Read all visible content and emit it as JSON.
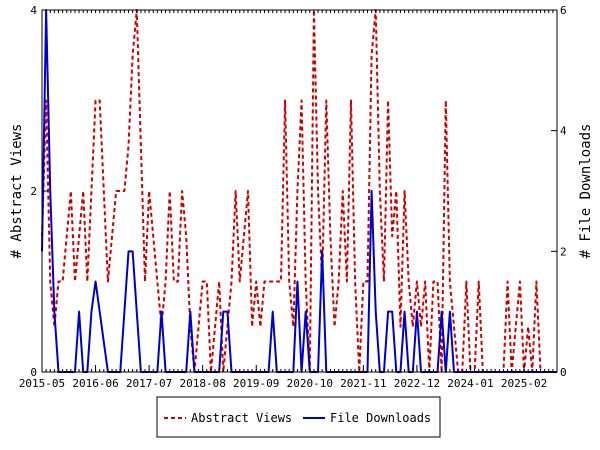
{
  "chart_data": {
    "type": "line",
    "title": "",
    "xlabel": "",
    "ylabel_left": "# Abstract Views",
    "ylabel_right": "# File Downloads",
    "x_range": [
      "2015-05",
      "2025-10"
    ],
    "ylim_left": [
      0,
      4
    ],
    "ylim_right": [
      0,
      6
    ],
    "x_ticks": [
      "2015-05",
      "2016-06",
      "2017-07",
      "2018-08",
      "2019-09",
      "2020-10",
      "2021-11",
      "2022-12",
      "2024-01",
      "2025-02"
    ],
    "y_ticks_left": [
      0,
      2,
      4
    ],
    "y_ticks_right": [
      0,
      2,
      4,
      6
    ],
    "grid": false,
    "legend_position": "bottom",
    "series": [
      {
        "name": "Abstract Views",
        "axis": "left",
        "color": "#cc0000",
        "style": "dashed",
        "points": [
          [
            "2015-05",
            1.5
          ],
          [
            "2015-06",
            3.0
          ],
          [
            "2015-07",
            1.0
          ],
          [
            "2015-08",
            0.5
          ],
          [
            "2015-09",
            1.0
          ],
          [
            "2015-10",
            1.0
          ],
          [
            "2015-11",
            1.5
          ],
          [
            "2015-12",
            2.0
          ],
          [
            "2016-01",
            1.0
          ],
          [
            "2016-02",
            1.5
          ],
          [
            "2016-03",
            2.0
          ],
          [
            "2016-04",
            1.0
          ],
          [
            "2016-05",
            2.0
          ],
          [
            "2016-06",
            3.0
          ],
          [
            "2016-07",
            3.0
          ],
          [
            "2016-08",
            2.0
          ],
          [
            "2016-09",
            1.0
          ],
          [
            "2016-10",
            1.5
          ],
          [
            "2016-11",
            2.0
          ],
          [
            "2016-12",
            2.0
          ],
          [
            "2017-01",
            2.0
          ],
          [
            "2017-02",
            2.5
          ],
          [
            "2017-03",
            3.5
          ],
          [
            "2017-04",
            4.0
          ],
          [
            "2017-05",
            2.5
          ],
          [
            "2017-06",
            1.0
          ],
          [
            "2017-07",
            2.0
          ],
          [
            "2017-08",
            1.5
          ],
          [
            "2017-09",
            1.0
          ],
          [
            "2017-10",
            0.5
          ],
          [
            "2017-11",
            1.0
          ],
          [
            "2017-12",
            2.0
          ],
          [
            "2018-01",
            1.0
          ],
          [
            "2018-02",
            1.0
          ],
          [
            "2018-03",
            2.0
          ],
          [
            "2018-04",
            1.5
          ],
          [
            "2018-05",
            0.5
          ],
          [
            "2018-06",
            0.0
          ],
          [
            "2018-07",
            0.5
          ],
          [
            "2018-08",
            1.0
          ],
          [
            "2018-09",
            1.0
          ],
          [
            "2018-10",
            0.0
          ],
          [
            "2018-11",
            0.5
          ],
          [
            "2018-12",
            1.0
          ],
          [
            "2019-01",
            0.0
          ],
          [
            "2019-02",
            0.5
          ],
          [
            "2019-03",
            1.0
          ],
          [
            "2019-04",
            2.0
          ],
          [
            "2019-05",
            1.0
          ],
          [
            "2019-06",
            1.5
          ],
          [
            "2019-07",
            2.0
          ],
          [
            "2019-08",
            0.5
          ],
          [
            "2019-09",
            1.0
          ],
          [
            "2019-10",
            0.5
          ],
          [
            "2019-11",
            1.0
          ],
          [
            "2019-12",
            1.0
          ],
          [
            "2020-01",
            1.0
          ],
          [
            "2020-02",
            1.0
          ],
          [
            "2020-03",
            1.0
          ],
          [
            "2020-04",
            3.0
          ],
          [
            "2020-05",
            1.0
          ],
          [
            "2020-06",
            0.5
          ],
          [
            "2020-07",
            2.0
          ],
          [
            "2020-08",
            3.0
          ],
          [
            "2020-09",
            1.0
          ],
          [
            "2020-10",
            0.0
          ],
          [
            "2020-11",
            4.0
          ],
          [
            "2020-12",
            2.0
          ],
          [
            "2021-01",
            1.0
          ],
          [
            "2021-02",
            3.0
          ],
          [
            "2021-03",
            1.5
          ],
          [
            "2021-04",
            0.5
          ],
          [
            "2021-05",
            1.0
          ],
          [
            "2021-06",
            2.0
          ],
          [
            "2021-07",
            1.0
          ],
          [
            "2021-08",
            3.0
          ],
          [
            "2021-09",
            1.0
          ],
          [
            "2021-10",
            0.0
          ],
          [
            "2021-11",
            1.0
          ],
          [
            "2021-12",
            1.0
          ],
          [
            "2022-01",
            3.5
          ],
          [
            "2022-02",
            4.0
          ],
          [
            "2022-03",
            2.0
          ],
          [
            "2022-04",
            1.0
          ],
          [
            "2022-05",
            3.0
          ],
          [
            "2022-06",
            1.5
          ],
          [
            "2022-07",
            2.0
          ],
          [
            "2022-08",
            0.5
          ],
          [
            "2022-09",
            2.0
          ],
          [
            "2022-10",
            1.0
          ],
          [
            "2022-11",
            0.5
          ],
          [
            "2022-12",
            1.0
          ],
          [
            "2023-01",
            0.5
          ],
          [
            "2023-02",
            1.0
          ],
          [
            "2023-03",
            0.0
          ],
          [
            "2023-04",
            1.0
          ],
          [
            "2023-05",
            1.0
          ],
          [
            "2023-06",
            0.0
          ],
          [
            "2023-07",
            3.0
          ],
          [
            "2023-08",
            1.0
          ],
          [
            "2023-09",
            0.5
          ],
          [
            "2023-10",
            0.0
          ],
          [
            "2023-11",
            0.0
          ],
          [
            "2023-12",
            1.0
          ],
          [
            "2024-01",
            0.0
          ],
          [
            "2024-02",
            0.0
          ],
          [
            "2024-03",
            1.0
          ],
          [
            "2024-04",
            0.0
          ],
          [
            "2024-05",
            0.0
          ],
          [
            "2024-06",
            0.0
          ],
          [
            "2024-07",
            0.0
          ],
          [
            "2024-08",
            0.0
          ],
          [
            "2024-09",
            0.0
          ],
          [
            "2024-10",
            1.0
          ],
          [
            "2024-11",
            0.0
          ],
          [
            "2024-12",
            0.5
          ],
          [
            "2025-01",
            1.0
          ],
          [
            "2025-02",
            0.0
          ],
          [
            "2025-03",
            0.5
          ],
          [
            "2025-04",
            0.0
          ],
          [
            "2025-05",
            1.0
          ],
          [
            "2025-06",
            0.0
          ],
          [
            "2025-07",
            0.0
          ],
          [
            "2025-08",
            0.0
          ],
          [
            "2025-09",
            0.0
          ],
          [
            "2025-10",
            0.0
          ]
        ]
      },
      {
        "name": "File Downloads",
        "axis": "right",
        "color": "#0000cc",
        "style": "solid",
        "points": [
          [
            "2015-05",
            2.0
          ],
          [
            "2015-06",
            6.0
          ],
          [
            "2015-07",
            3.0
          ],
          [
            "2015-08",
            1.0
          ],
          [
            "2015-09",
            0.0
          ],
          [
            "2015-10",
            0.0
          ],
          [
            "2015-11",
            0.0
          ],
          [
            "2015-12",
            0.0
          ],
          [
            "2016-01",
            0.0
          ],
          [
            "2016-02",
            1.0
          ],
          [
            "2016-03",
            0.0
          ],
          [
            "2016-04",
            0.0
          ],
          [
            "2016-05",
            1.0
          ],
          [
            "2016-06",
            1.5
          ],
          [
            "2016-07",
            1.0
          ],
          [
            "2016-08",
            0.5
          ],
          [
            "2016-09",
            0.0
          ],
          [
            "2016-10",
            0.0
          ],
          [
            "2016-11",
            0.0
          ],
          [
            "2016-12",
            0.0
          ],
          [
            "2017-01",
            1.0
          ],
          [
            "2017-02",
            2.0
          ],
          [
            "2017-03",
            2.0
          ],
          [
            "2017-04",
            1.0
          ],
          [
            "2017-05",
            0.0
          ],
          [
            "2017-06",
            0.0
          ],
          [
            "2017-07",
            0.0
          ],
          [
            "2017-08",
            0.0
          ],
          [
            "2017-09",
            0.0
          ],
          [
            "2017-10",
            1.0
          ],
          [
            "2017-11",
            0.0
          ],
          [
            "2017-12",
            0.0
          ],
          [
            "2018-01",
            0.0
          ],
          [
            "2018-02",
            0.0
          ],
          [
            "2018-03",
            0.0
          ],
          [
            "2018-04",
            0.0
          ],
          [
            "2018-05",
            1.0
          ],
          [
            "2018-06",
            0.0
          ],
          [
            "2018-07",
            0.0
          ],
          [
            "2018-08",
            0.0
          ],
          [
            "2018-09",
            0.0
          ],
          [
            "2018-10",
            0.0
          ],
          [
            "2018-11",
            0.0
          ],
          [
            "2018-12",
            0.0
          ],
          [
            "2019-01",
            1.0
          ],
          [
            "2019-02",
            1.0
          ],
          [
            "2019-03",
            0.0
          ],
          [
            "2019-04",
            0.0
          ],
          [
            "2019-05",
            0.0
          ],
          [
            "2019-06",
            0.0
          ],
          [
            "2019-07",
            0.0
          ],
          [
            "2019-08",
            0.0
          ],
          [
            "2019-09",
            0.0
          ],
          [
            "2019-10",
            0.0
          ],
          [
            "2019-11",
            0.0
          ],
          [
            "2019-12",
            0.0
          ],
          [
            "2020-01",
            1.0
          ],
          [
            "2020-02",
            0.0
          ],
          [
            "2020-03",
            0.0
          ],
          [
            "2020-04",
            0.0
          ],
          [
            "2020-05",
            0.0
          ],
          [
            "2020-06",
            0.0
          ],
          [
            "2020-07",
            1.5
          ],
          [
            "2020-08",
            0.0
          ],
          [
            "2020-09",
            1.0
          ],
          [
            "2020-10",
            0.0
          ],
          [
            "2020-11",
            0.0
          ],
          [
            "2020-12",
            0.0
          ],
          [
            "2021-01",
            2.0
          ],
          [
            "2021-02",
            0.0
          ],
          [
            "2021-03",
            0.0
          ],
          [
            "2021-04",
            0.0
          ],
          [
            "2021-05",
            0.0
          ],
          [
            "2021-06",
            0.0
          ],
          [
            "2021-07",
            0.0
          ],
          [
            "2021-08",
            0.0
          ],
          [
            "2021-09",
            0.0
          ],
          [
            "2021-10",
            0.0
          ],
          [
            "2021-11",
            0.0
          ],
          [
            "2021-12",
            0.0
          ],
          [
            "2022-01",
            3.0
          ],
          [
            "2022-02",
            1.0
          ],
          [
            "2022-03",
            0.0
          ],
          [
            "2022-04",
            0.0
          ],
          [
            "2022-05",
            1.0
          ],
          [
            "2022-06",
            1.0
          ],
          [
            "2022-07",
            0.0
          ],
          [
            "2022-08",
            0.0
          ],
          [
            "2022-09",
            1.0
          ],
          [
            "2022-10",
            0.0
          ],
          [
            "2022-11",
            0.0
          ],
          [
            "2022-12",
            1.0
          ],
          [
            "2023-01",
            0.0
          ],
          [
            "2023-02",
            0.0
          ],
          [
            "2023-03",
            0.0
          ],
          [
            "2023-04",
            0.0
          ],
          [
            "2023-05",
            0.0
          ],
          [
            "2023-06",
            1.0
          ],
          [
            "2023-07",
            0.0
          ],
          [
            "2023-08",
            1.0
          ],
          [
            "2023-09",
            0.0
          ],
          [
            "2023-10",
            0.0
          ],
          [
            "2023-11",
            0.0
          ],
          [
            "2023-12",
            0.0
          ],
          [
            "2024-01",
            0.0
          ],
          [
            "2024-02",
            0.0
          ],
          [
            "2024-03",
            0.0
          ],
          [
            "2024-04",
            0.0
          ],
          [
            "2024-05",
            0.0
          ],
          [
            "2024-06",
            0.0
          ],
          [
            "2024-07",
            0.0
          ],
          [
            "2024-08",
            0.0
          ],
          [
            "2024-09",
            0.0
          ],
          [
            "2024-10",
            0.0
          ],
          [
            "2024-11",
            0.0
          ],
          [
            "2024-12",
            0.0
          ],
          [
            "2025-01",
            0.0
          ],
          [
            "2025-02",
            0.0
          ],
          [
            "2025-03",
            0.0
          ],
          [
            "2025-04",
            0.0
          ],
          [
            "2025-05",
            0.0
          ],
          [
            "2025-06",
            0.0
          ],
          [
            "2025-07",
            0.0
          ],
          [
            "2025-08",
            0.0
          ],
          [
            "2025-09",
            0.0
          ],
          [
            "2025-10",
            0.0
          ]
        ]
      }
    ]
  }
}
